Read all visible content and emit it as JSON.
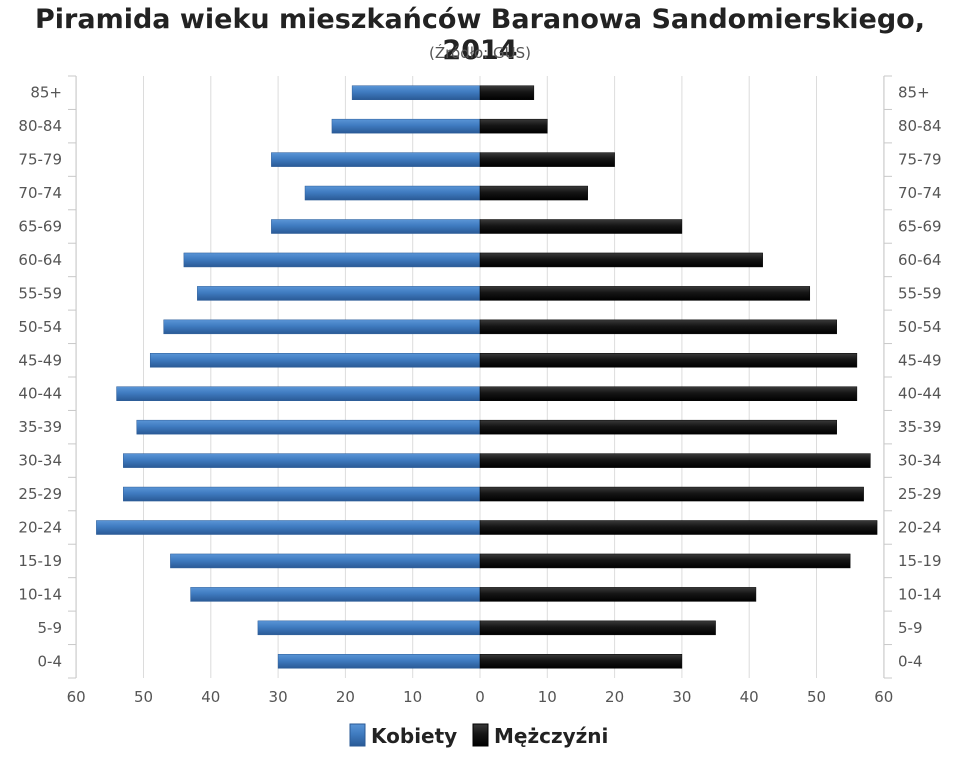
{
  "chart_data": {
    "type": "bar",
    "title": "Piramida wieku mieszkańców Baranowa Sandomierskiego, 2014",
    "subtitle": "(Źródło: GUS)",
    "categories": [
      "85+",
      "80-84",
      "75-79",
      "70-74",
      "65-69",
      "60-64",
      "55-59",
      "50-54",
      "45-49",
      "40-44",
      "35-39",
      "30-34",
      "25-29",
      "20-24",
      "15-19",
      "10-14",
      "5-9",
      "0-4"
    ],
    "series": [
      {
        "name": "Kobiety",
        "color": "#3b73b0",
        "values": [
          19,
          22,
          31,
          26,
          31,
          44,
          42,
          47,
          49,
          54,
          51,
          53,
          53,
          57,
          46,
          43,
          33,
          30
        ]
      },
      {
        "name": "Mężczyźni",
        "color": "#111111",
        "values": [
          8,
          10,
          20,
          16,
          30,
          42,
          49,
          53,
          56,
          56,
          53,
          58,
          57,
          59,
          55,
          41,
          35,
          30
        ]
      }
    ],
    "x_ticks": [
      "60",
      "50",
      "40",
      "30",
      "20",
      "10",
      "0",
      "10",
      "20",
      "30",
      "40",
      "50",
      "60"
    ],
    "xlim": [
      -60,
      60
    ],
    "grid": true,
    "legend": "bottom"
  }
}
